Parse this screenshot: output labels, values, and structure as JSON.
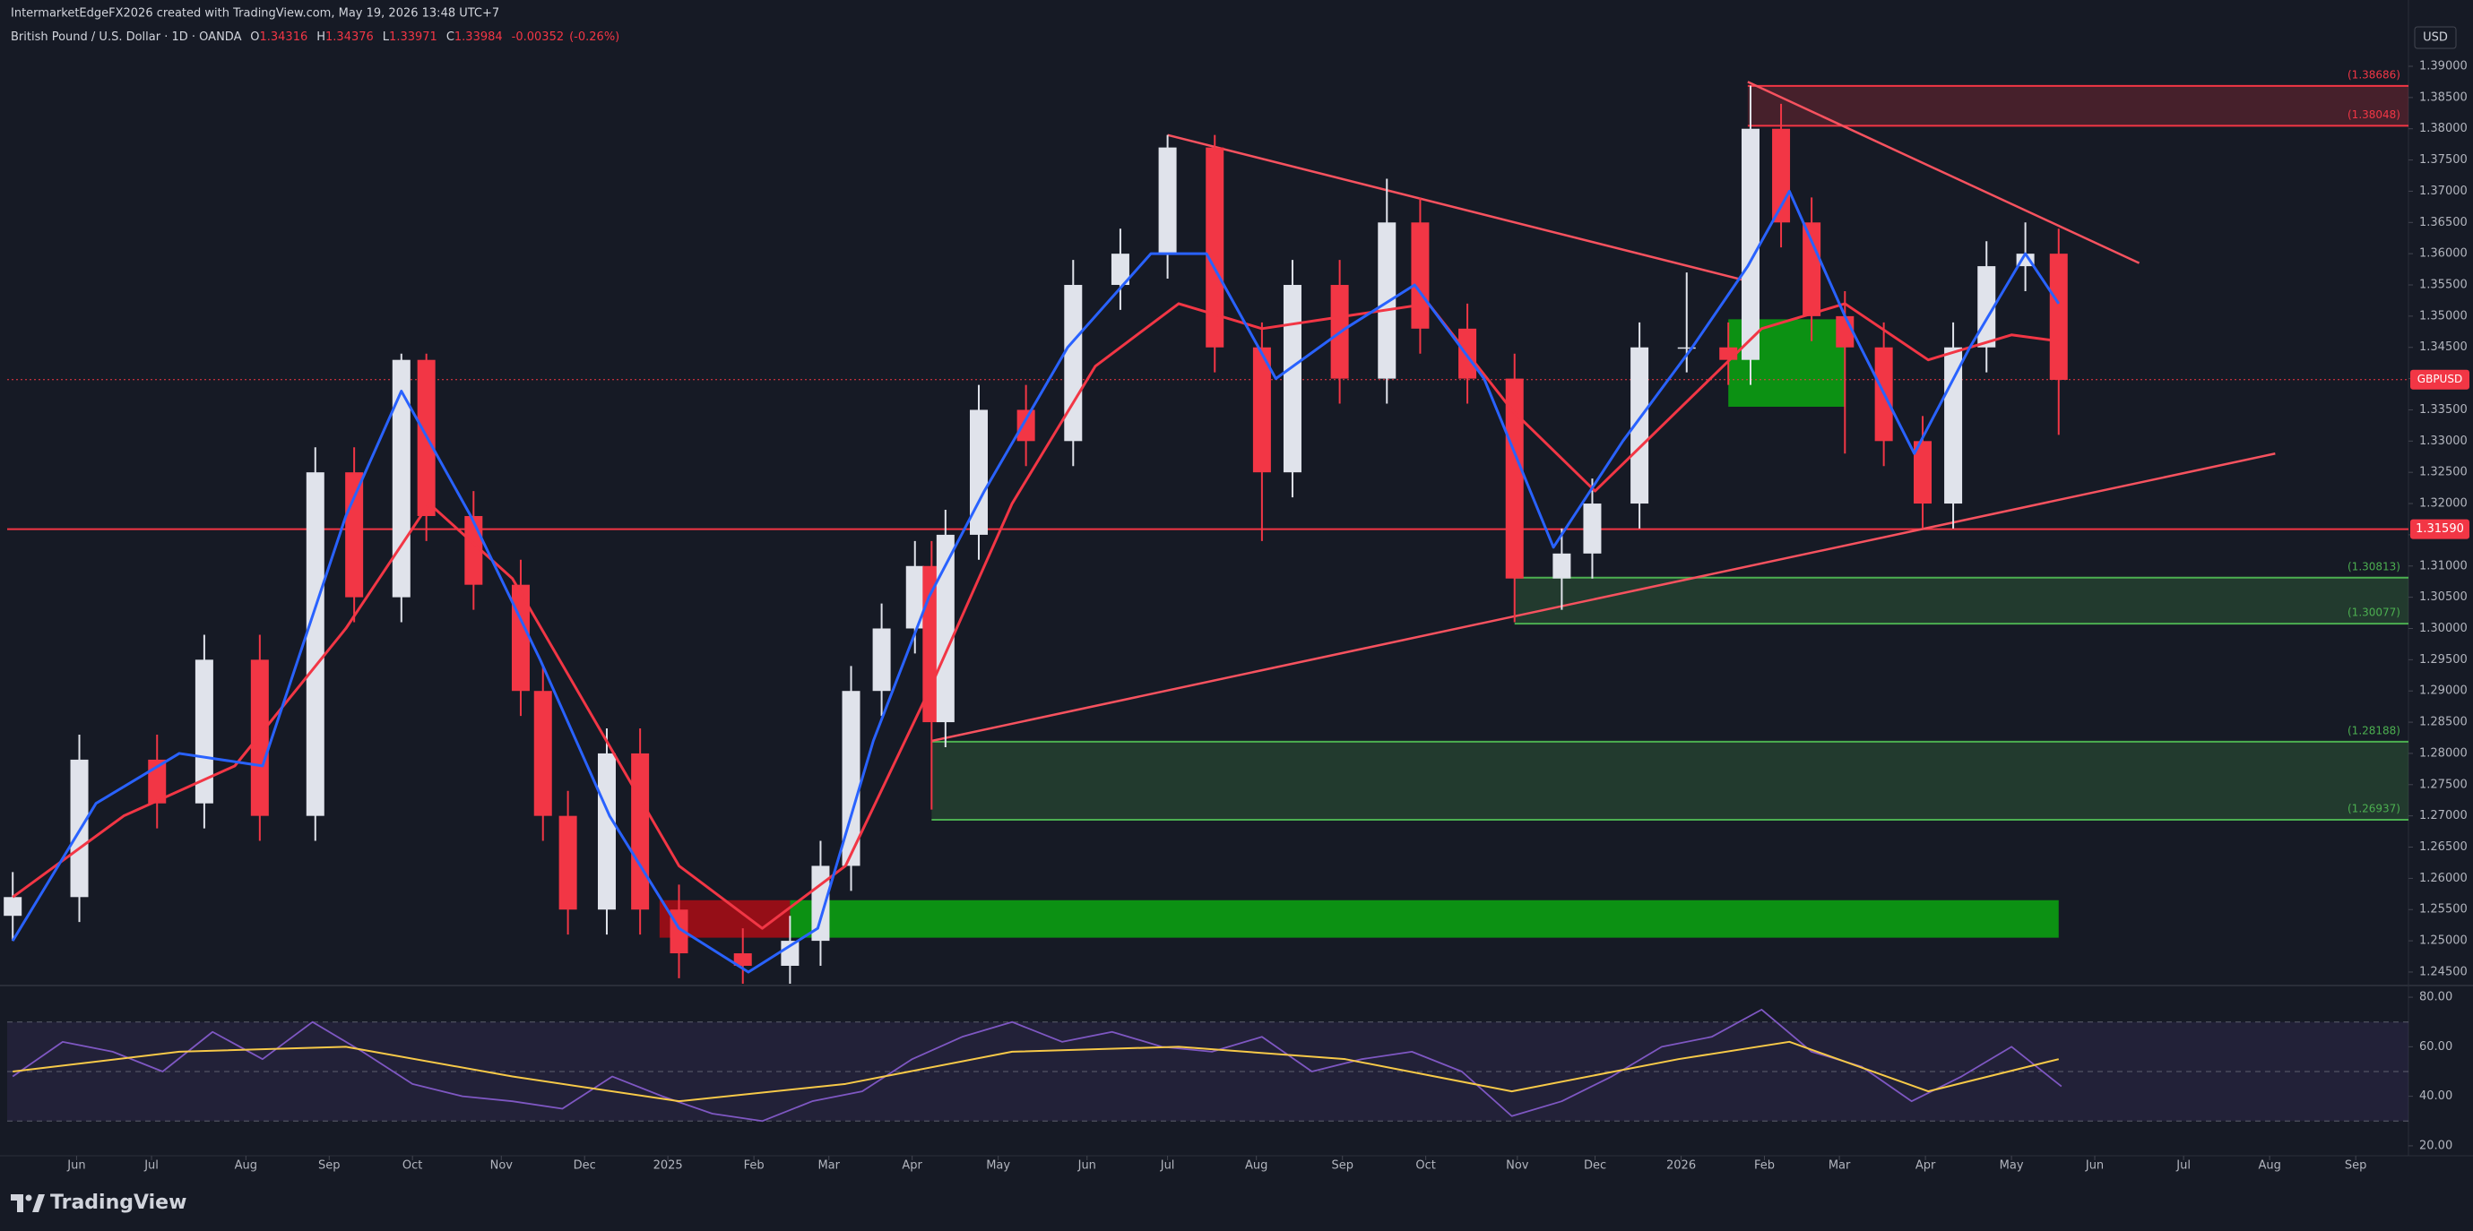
{
  "header": {
    "credit": "IntermarketEdgeFX2026 created with TradingView.com, May 19, 2026 13:48 UTC+7",
    "symbol": "British Pound / U.S. Dollar · 1D · OANDA",
    "ohlc": [
      {
        "key": "O",
        "value": 1.34316
      },
      {
        "key": "H",
        "value": 1.34376
      },
      {
        "key": "L",
        "value": 1.33971
      },
      {
        "key": "C",
        "value": 1.33984
      }
    ],
    "change": -0.00352,
    "change_pct": {
      "value": -0.26,
      "label": "(-0.26%)"
    },
    "currency": "USD"
  },
  "chart_data": {
    "type": "candlestick",
    "x": [
      0,
      24,
      52,
      69,
      89,
      109,
      123,
      140,
      149,
      166,
      183,
      191,
      200,
      214,
      226,
      240,
      263,
      280,
      291,
      302,
      313,
      325,
      331,
      336,
      348,
      365,
      382,
      399,
      416,
      433,
      450,
      461,
      478,
      495,
      507,
      524,
      541,
      558,
      569,
      586,
      603,
      618,
      626,
      637,
      648,
      660,
      674,
      688,
      699,
      711,
      725,
      737
    ],
    "open": [
      1.254,
      1.257,
      1.279,
      1.272,
      1.295,
      1.27,
      1.325,
      1.305,
      1.343,
      1.318,
      1.307,
      1.29,
      1.27,
      1.255,
      1.28,
      1.255,
      1.248,
      1.246,
      1.25,
      1.262,
      1.29,
      1.3,
      1.31,
      1.285,
      1.315,
      1.335,
      1.33,
      1.355,
      1.36,
      1.377,
      1.345,
      1.325,
      1.355,
      1.34,
      1.365,
      1.348,
      1.34,
      1.308,
      1.312,
      1.32,
      1.345,
      1.345,
      1.343,
      1.38,
      1.365,
      1.35,
      1.345,
      1.33,
      1.32,
      1.345,
      1.358,
      1.36
    ],
    "high": [
      1.261,
      1.283,
      1.283,
      1.299,
      1.299,
      1.329,
      1.329,
      1.344,
      1.344,
      1.322,
      1.311,
      1.294,
      1.274,
      1.284,
      1.284,
      1.259,
      1.252,
      1.254,
      1.266,
      1.294,
      1.304,
      1.314,
      1.314,
      1.319,
      1.339,
      1.339,
      1.359,
      1.364,
      1.379,
      1.379,
      1.349,
      1.359,
      1.359,
      1.372,
      1.369,
      1.352,
      1.344,
      1.316,
      1.324,
      1.349,
      1.357,
      1.349,
      1.3869,
      1.384,
      1.369,
      1.354,
      1.349,
      1.334,
      1.349,
      1.362,
      1.365,
      1.364
    ],
    "low": [
      1.25,
      1.253,
      1.268,
      1.268,
      1.266,
      1.266,
      1.301,
      1.301,
      1.314,
      1.303,
      1.286,
      1.266,
      1.251,
      1.251,
      1.251,
      1.244,
      1.242,
      1.242,
      1.246,
      1.258,
      1.286,
      1.296,
      1.271,
      1.281,
      1.311,
      1.326,
      1.326,
      1.351,
      1.356,
      1.341,
      1.314,
      1.321,
      1.336,
      1.336,
      1.344,
      1.336,
      1.301,
      1.303,
      1.308,
      1.316,
      1.341,
      1.339,
      1.339,
      1.361,
      1.346,
      1.328,
      1.326,
      1.316,
      1.316,
      1.341,
      1.354,
      1.331
    ],
    "close": [
      1.257,
      1.279,
      1.272,
      1.295,
      1.27,
      1.325,
      1.305,
      1.343,
      1.318,
      1.307,
      1.29,
      1.27,
      1.255,
      1.28,
      1.255,
      1.248,
      1.246,
      1.25,
      1.262,
      1.29,
      1.3,
      1.31,
      1.285,
      1.315,
      1.335,
      1.33,
      1.355,
      1.36,
      1.377,
      1.345,
      1.325,
      1.355,
      1.34,
      1.365,
      1.348,
      1.34,
      1.308,
      1.312,
      1.32,
      1.345,
      1.345,
      1.343,
      1.38,
      1.365,
      1.35,
      1.345,
      1.33,
      1.32,
      1.345,
      1.358,
      1.36,
      1.3398
    ],
    "up_color": "#e0e3eb",
    "down_color": "#f23645",
    "xlim": [
      -2,
      863
    ],
    "xticks": [
      {
        "value": 23,
        "label": "Jun"
      },
      {
        "value": 50,
        "label": "Jul"
      },
      {
        "value": 84,
        "label": "Aug"
      },
      {
        "value": 114,
        "label": "Sep"
      },
      {
        "value": 144,
        "label": "Oct"
      },
      {
        "value": 176,
        "label": "Nov"
      },
      {
        "value": 206,
        "label": "Dec"
      },
      {
        "value": 236,
        "label": "2025"
      },
      {
        "value": 267,
        "label": "Feb"
      },
      {
        "value": 294,
        "label": "Mar"
      },
      {
        "value": 324,
        "label": "Apr"
      },
      {
        "value": 355,
        "label": "May"
      },
      {
        "value": 387,
        "label": "Jun"
      },
      {
        "value": 416,
        "label": "Jul"
      },
      {
        "value": 448,
        "label": "Aug"
      },
      {
        "value": 479,
        "label": "Sep"
      },
      {
        "value": 509,
        "label": "Oct"
      },
      {
        "value": 542,
        "label": "Nov"
      },
      {
        "value": 570,
        "label": "Dec"
      },
      {
        "value": 601,
        "label": "2026"
      },
      {
        "value": 631,
        "label": "Feb"
      },
      {
        "value": 658,
        "label": "Mar"
      },
      {
        "value": 689,
        "label": "Apr"
      },
      {
        "value": 720,
        "label": "May"
      },
      {
        "value": 750,
        "label": "Jun"
      },
      {
        "value": 782,
        "label": "Jul"
      },
      {
        "value": 813,
        "label": "Aug"
      },
      {
        "value": 844,
        "label": "Sep"
      }
    ],
    "ylim": [
      1.24313,
      1.39301
    ],
    "yticks": [
      {
        "value": 1.39,
        "label": "1.39000"
      },
      {
        "value": 1.385,
        "label": "1.38500"
      },
      {
        "value": 1.38,
        "label": "1.38000"
      },
      {
        "value": 1.375,
        "label": "1.37500"
      },
      {
        "value": 1.37,
        "label": "1.37000"
      },
      {
        "value": 1.365,
        "label": "1.36500"
      },
      {
        "value": 1.36,
        "label": "1.36000"
      },
      {
        "value": 1.355,
        "label": "1.35500"
      },
      {
        "value": 1.35,
        "label": "1.35000"
      },
      {
        "value": 1.345,
        "label": "1.34500"
      },
      {
        "value": 1.34,
        "label": "1.34000"
      },
      {
        "value": 1.335,
        "label": "1.33500"
      },
      {
        "value": 1.33,
        "label": "1.33000"
      },
      {
        "value": 1.325,
        "label": "1.32500"
      },
      {
        "value": 1.32,
        "label": "1.32000"
      },
      {
        "value": 1.315,
        "label": "1.31500"
      },
      {
        "value": 1.31,
        "label": "1.31000"
      },
      {
        "value": 1.305,
        "label": "1.30500"
      },
      {
        "value": 1.3,
        "label": "1.30000"
      },
      {
        "value": 1.295,
        "label": "1.29500"
      },
      {
        "value": 1.29,
        "label": "1.29000"
      },
      {
        "value": 1.285,
        "label": "1.28500"
      },
      {
        "value": 1.28,
        "label": "1.28000"
      },
      {
        "value": 1.275,
        "label": "1.27500"
      },
      {
        "value": 1.27,
        "label": "1.27000"
      },
      {
        "value": 1.265,
        "label": "1.26500"
      },
      {
        "value": 1.26,
        "label": "1.26000"
      },
      {
        "value": 1.255,
        "label": "1.25500"
      },
      {
        "value": 1.25,
        "label": "1.25000"
      },
      {
        "value": 1.245,
        "label": "1.24500"
      }
    ],
    "grid": false,
    "moving_averages": [
      {
        "color": "#f23645",
        "x": [
          0,
          40,
          80,
          120,
          150,
          180,
          210,
          240,
          270,
          300,
          330,
          360,
          390,
          420,
          450,
          480,
          510,
          540,
          570,
          600,
          630,
          660,
          690,
          720,
          737
        ],
        "values": [
          1.257,
          1.27,
          1.278,
          1.3,
          1.32,
          1.308,
          1.285,
          1.262,
          1.252,
          1.262,
          1.29,
          1.32,
          1.342,
          1.352,
          1.348,
          1.35,
          1.352,
          1.335,
          1.322,
          1.335,
          1.348,
          1.352,
          1.343,
          1.347,
          1.346
        ]
      },
      {
        "color": "#2962ff",
        "x": [
          0,
          30,
          60,
          90,
          120,
          140,
          165,
          190,
          215,
          240,
          265,
          290,
          310,
          330,
          350,
          380,
          410,
          430,
          455,
          480,
          505,
          530,
          555,
          580,
          605,
          625,
          640,
          660,
          685,
          705,
          725,
          737
        ],
        "values": [
          1.25,
          1.272,
          1.28,
          1.278,
          1.318,
          1.338,
          1.318,
          1.295,
          1.27,
          1.252,
          1.245,
          1.252,
          1.282,
          1.305,
          1.322,
          1.345,
          1.36,
          1.36,
          1.34,
          1.348,
          1.355,
          1.34,
          1.313,
          1.33,
          1.345,
          1.358,
          1.37,
          1.35,
          1.328,
          1.345,
          1.36,
          1.352
        ]
      }
    ],
    "zones": [
      {
        "start": 625,
        "end": 863,
        "top": {
          "value": 1.38686,
          "label": "(1.38686)"
        },
        "bottom": {
          "value": 1.38048,
          "label": "(1.38048)"
        },
        "color": "#f23645"
      },
      {
        "start": 541,
        "end": 863,
        "top": {
          "value": 1.30813,
          "label": "(1.30813)"
        },
        "bottom": {
          "value": 1.30077,
          "label": "(1.30077)"
        },
        "color": "#4caf50"
      },
      {
        "start": 331,
        "end": 863,
        "top": {
          "value": 1.28188,
          "label": "(1.28188)"
        },
        "bottom": {
          "value": 1.26937,
          "label": "(1.26937)"
        },
        "color": "#4caf50"
      }
    ],
    "blocks": [
      {
        "start": 280,
        "end": 737,
        "top": 1.2565,
        "bottom": 1.2505,
        "color": "#0b9e12"
      },
      {
        "start": 233,
        "end": 280,
        "top": 1.2565,
        "bottom": 1.2505,
        "color": "#a30d16"
      },
      {
        "start": 618,
        "end": 660,
        "top": 1.3495,
        "bottom": 1.3355,
        "color": "#0b9e12"
      }
    ],
    "trend_lines": [
      {
        "x": [
          416,
          626
        ],
        "values": [
          1.379,
          1.3555
        ],
        "color": "#f7525f"
      },
      {
        "x": [
          625,
          766
        ],
        "values": [
          1.3875,
          1.3585
        ],
        "color": "#f7525f"
      },
      {
        "x": [
          331,
          815
        ],
        "values": [
          1.282,
          1.328
        ],
        "color": "#f7525f"
      }
    ],
    "price_levels": [
      {
        "value": 1.3159,
        "label": "1.31590",
        "color": "#f23645"
      }
    ],
    "last_price": {
      "value": 1.33984,
      "label": "GBPUSD",
      "color": "#f23645"
    },
    "rsi": {
      "color": "#7e57c2",
      "x": [
        0,
        18,
        36,
        54,
        72,
        90,
        108,
        126,
        144,
        162,
        180,
        198,
        216,
        234,
        252,
        270,
        288,
        306,
        324,
        342,
        360,
        378,
        396,
        414,
        432,
        450,
        468,
        486,
        504,
        522,
        540,
        558,
        576,
        594,
        612,
        630,
        648,
        666,
        684,
        702,
        720,
        738
      ],
      "values": [
        48,
        62,
        58,
        50,
        66,
        55,
        70,
        58,
        45,
        40,
        38,
        35,
        48,
        40,
        33,
        30,
        38,
        42,
        55,
        64,
        70,
        62,
        66,
        60,
        58,
        64,
        50,
        55,
        58,
        50,
        32,
        38,
        48,
        60,
        64,
        75,
        58,
        52,
        38,
        48,
        60,
        44
      ],
      "ma": {
        "color": "#f7c948",
        "x": [
          0,
          60,
          120,
          180,
          240,
          300,
          360,
          420,
          480,
          540,
          600,
          640,
          690,
          737
        ],
        "values": [
          50,
          58,
          60,
          48,
          38,
          45,
          58,
          60,
          55,
          42,
          55,
          62,
          42,
          55
        ]
      },
      "ylim": [
        16,
        84
      ],
      "yticks": [
        {
          "value": 80,
          "label": "80.00"
        },
        {
          "value": 60,
          "label": "60.00"
        },
        {
          "value": 40,
          "label": "40.00"
        },
        {
          "value": 20,
          "label": "20.00"
        }
      ],
      "levels": [
        70,
        50,
        30
      ]
    }
  },
  "footer": {
    "brand": "TradingView"
  }
}
